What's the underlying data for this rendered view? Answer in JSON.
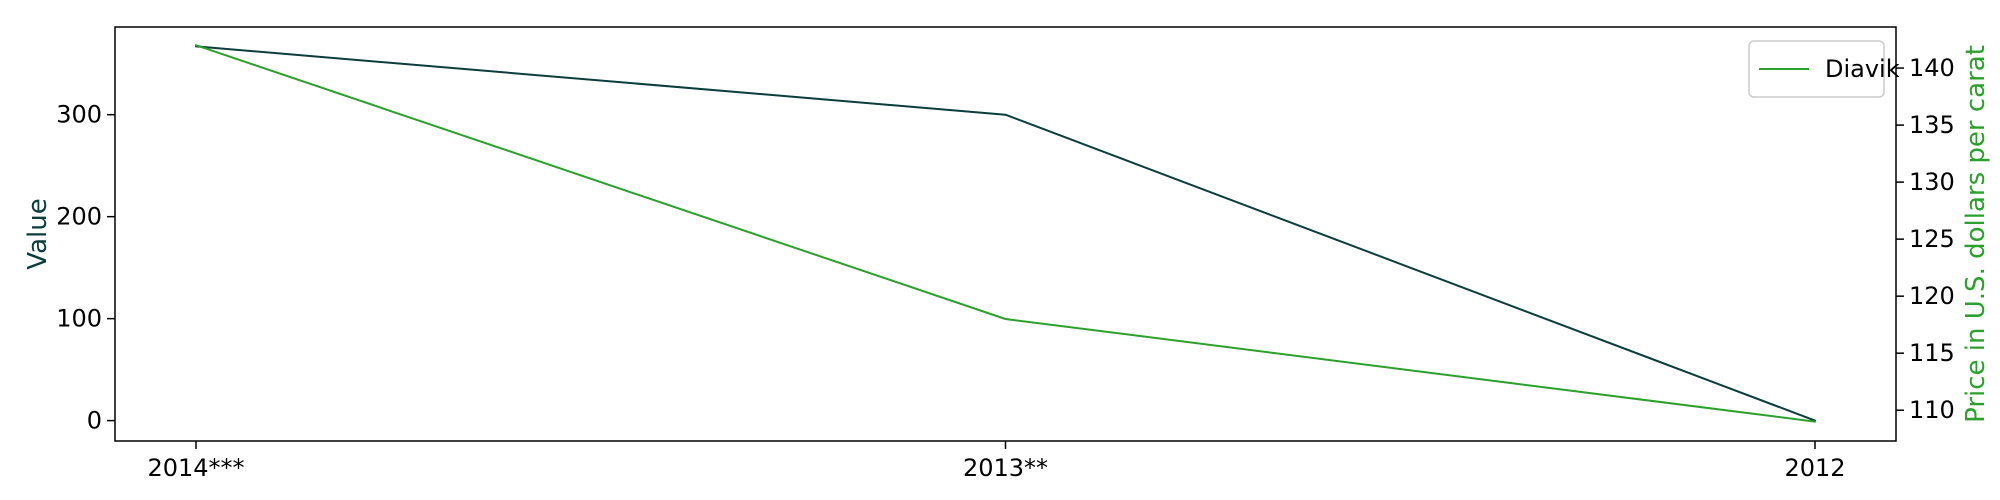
{
  "chart_data": {
    "type": "line",
    "categories": [
      "2014***",
      "2013**",
      "2012"
    ],
    "ylabel_left": "Value",
    "ylabel_right": "Price in U.S. dollars per carat",
    "left_axis": {
      "ylim": [
        -20,
        386
      ],
      "ticks": [
        0,
        100,
        200,
        300
      ],
      "color": "#0b3d3d"
    },
    "right_axis": {
      "ylim": [
        107.3,
        143.6
      ],
      "ticks": [
        110,
        115,
        120,
        125,
        130,
        135,
        140
      ],
      "color": "#2ca02c"
    },
    "series": [
      {
        "axis": "left",
        "color": "#0b3d3d",
        "values": [
          367,
          300,
          0
        ]
      },
      {
        "name": "Diavik",
        "axis": "right",
        "color": "#2ca02c",
        "values": [
          142,
          118,
          109
        ]
      }
    ],
    "legend": {
      "position": "top-right"
    },
    "grid": false
  }
}
